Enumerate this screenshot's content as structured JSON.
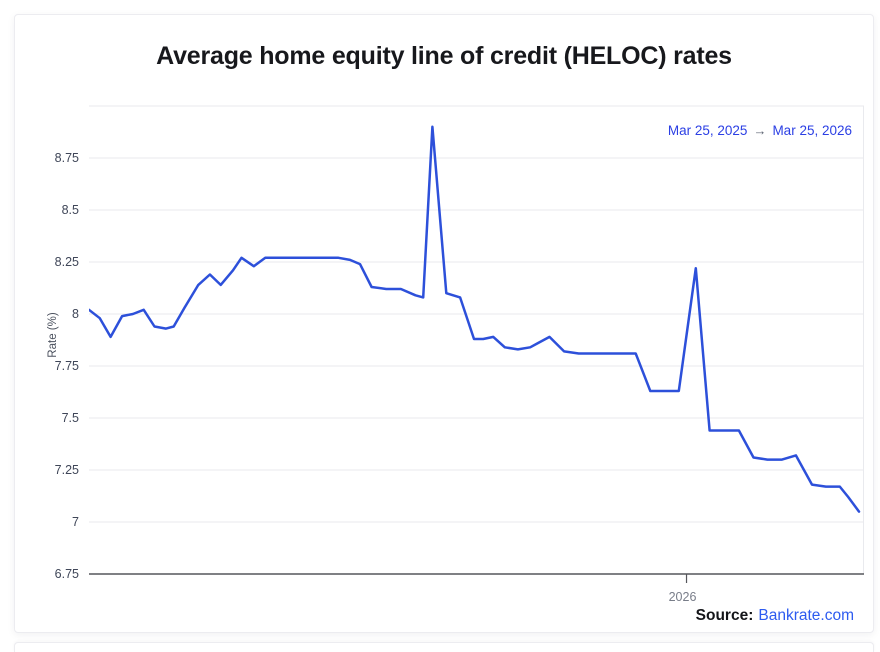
{
  "card": {
    "title": "Average home equity line of credit (HELOC) rates",
    "date_range": {
      "start": "Mar 25, 2025",
      "arrow": "→",
      "end": "Mar 25, 2026"
    },
    "source": {
      "label": "Source:",
      "link_text": "Bankrate.com"
    }
  },
  "colors": {
    "line": "#2d50da",
    "grid": "#e9eaee",
    "axis": "#55565b",
    "date_link": "#2b3fe4",
    "source_link": "#2d5bf0"
  },
  "chart_data": {
    "type": "line",
    "title": "Average home equity line of credit (HELOC) rates",
    "xlabel": "",
    "ylabel": "Rate (%)",
    "ylim": [
      6.75,
      9.0
    ],
    "grid": true,
    "legend": "none",
    "x_range": [
      "Mar 25, 2025",
      "Mar 25, 2026"
    ],
    "line_color": "#2d50da",
    "y_ticks": [
      {
        "value": 8.75,
        "label": "8.75"
      },
      {
        "value": 8.5,
        "label": "8.5"
      },
      {
        "value": 8.25,
        "label": "8.25"
      },
      {
        "value": 8.0,
        "label": "8"
      },
      {
        "value": 7.75,
        "label": "7.75"
      },
      {
        "value": 7.5,
        "label": "7.5"
      },
      {
        "value": 7.25,
        "label": "7.25"
      },
      {
        "value": 7.0,
        "label": "7"
      },
      {
        "value": 6.75,
        "label": "6.75",
        "axis": true
      }
    ],
    "x_ticks": [
      {
        "f": 0.776,
        "label": "2026"
      }
    ],
    "series": [
      {
        "name": "Average HELOC rate (%)",
        "points": [
          [
            0.0,
            8.02
          ],
          [
            0.014,
            7.98
          ],
          [
            0.028,
            7.89
          ],
          [
            0.043,
            7.99
          ],
          [
            0.057,
            8.0
          ],
          [
            0.071,
            8.02
          ],
          [
            0.085,
            7.94
          ],
          [
            0.1,
            7.93
          ],
          [
            0.11,
            7.94
          ],
          [
            0.124,
            8.03
          ],
          [
            0.142,
            8.14
          ],
          [
            0.157,
            8.19
          ],
          [
            0.171,
            8.14
          ],
          [
            0.187,
            8.21
          ],
          [
            0.198,
            8.27
          ],
          [
            0.214,
            8.23
          ],
          [
            0.229,
            8.27
          ],
          [
            0.249,
            8.27
          ],
          [
            0.268,
            8.27
          ],
          [
            0.286,
            8.27
          ],
          [
            0.306,
            8.27
          ],
          [
            0.324,
            8.27
          ],
          [
            0.339,
            8.26
          ],
          [
            0.352,
            8.24
          ],
          [
            0.367,
            8.13
          ],
          [
            0.386,
            8.12
          ],
          [
            0.405,
            8.12
          ],
          [
            0.424,
            8.09
          ],
          [
            0.434,
            8.08
          ],
          [
            0.446,
            8.9
          ],
          [
            0.464,
            8.1
          ],
          [
            0.482,
            8.08
          ],
          [
            0.5,
            7.88
          ],
          [
            0.512,
            7.88
          ],
          [
            0.525,
            7.89
          ],
          [
            0.54,
            7.84
          ],
          [
            0.557,
            7.83
          ],
          [
            0.573,
            7.84
          ],
          [
            0.583,
            7.86
          ],
          [
            0.598,
            7.89
          ],
          [
            0.617,
            7.82
          ],
          [
            0.636,
            7.81
          ],
          [
            0.654,
            7.81
          ],
          [
            0.674,
            7.81
          ],
          [
            0.692,
            7.81
          ],
          [
            0.71,
            7.81
          ],
          [
            0.729,
            7.63
          ],
          [
            0.747,
            7.63
          ],
          [
            0.766,
            7.63
          ],
          [
            0.788,
            8.22
          ],
          [
            0.806,
            7.44
          ],
          [
            0.825,
            7.44
          ],
          [
            0.844,
            7.44
          ],
          [
            0.863,
            7.31
          ],
          [
            0.881,
            7.3
          ],
          [
            0.9,
            7.3
          ],
          [
            0.918,
            7.32
          ],
          [
            0.939,
            7.18
          ],
          [
            0.957,
            7.17
          ],
          [
            0.975,
            7.17
          ],
          [
            0.986,
            7.12
          ],
          [
            1.0,
            7.05
          ]
        ]
      }
    ]
  }
}
